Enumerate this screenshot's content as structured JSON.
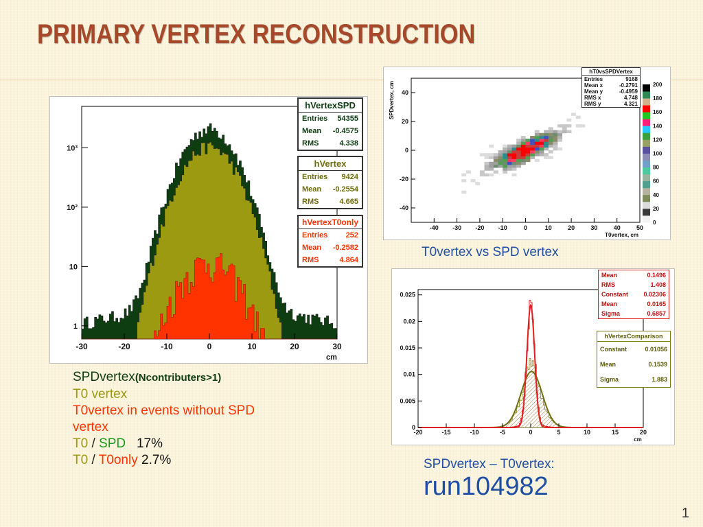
{
  "slide": {
    "title": "PRIMARY VERTEX RECONSTRUCTION",
    "page_number": "1"
  },
  "left_caption": {
    "line1_main": "SPDvertex",
    "line1_sub": "(Ncontributers>1)",
    "line2": "T0 vertex",
    "line3": "T0vertex in events without  SPD",
    "line4": "vertex",
    "ratio1_a": "T0",
    "ratio1_sep": " / ",
    "ratio1_b": "SPD",
    "ratio1_val": "17%",
    "ratio2_a": "T0",
    "ratio2_sep": " / ",
    "ratio2_b": "T0only",
    "ratio2_val": "2.7%"
  },
  "top_right_caption": "T0vertex vs SPD vertex",
  "bottom_right_caption": {
    "line1": "SPDvertex – T0vertex:",
    "line2": "run104982"
  },
  "colors": {
    "title": "#a5492a",
    "spd_fill": "#0f3d12",
    "t0_fill": "#9c9a10",
    "t0only_fill": "#ff3300",
    "caption_blue": "#1f4fa5",
    "comparison_red": "#e02020",
    "comparison_olive": "#7a7a10"
  },
  "chart_data": [
    {
      "type": "histogram",
      "x_tick_labels": [
        "-30",
        "-20",
        "-10",
        "0",
        "10",
        "20",
        "30"
      ],
      "x_ticks": [
        -30,
        -20,
        -10,
        0,
        10,
        20,
        30
      ],
      "xlabel": "cm",
      "y_scale": "log",
      "y_tick_labels": [
        "1",
        "10",
        "10²",
        "10³"
      ],
      "y_ticks": [
        1,
        10,
        100,
        1000
      ],
      "xlim": [
        -30,
        30
      ],
      "ylim": [
        0.6,
        5000
      ],
      "series": [
        {
          "name": "hVertexSPD",
          "stats": {
            "Entries": "54355",
            "Mean": "-0.4575",
            "RMS": "4.338"
          },
          "peak": 2100,
          "sigma": 4.4,
          "color": "#0f3d12"
        },
        {
          "name": "hVertex",
          "stats": {
            "Entries": "9424",
            "Mean": "-0.2554",
            "RMS": "4.665"
          },
          "peak": 1050,
          "sigma": 4.5,
          "color": "#9c9a10"
        },
        {
          "name": "hVertexT0only",
          "stats": {
            "Entries": "252",
            "Mean": "-0.2582",
            "RMS": "4.864"
          },
          "peak": 12,
          "sigma": 5.2,
          "color": "#ff3300"
        }
      ]
    },
    {
      "type": "heatmap",
      "stats_title": "hT0vsSPDVertex",
      "stats": [
        {
          "label": "Entries",
          "value": "9168"
        },
        {
          "label": "Mean x",
          "value": "-0.2791"
        },
        {
          "label": "Mean y",
          "value": "-0.4959"
        },
        {
          "label": "RMS x",
          "value": "4.748"
        },
        {
          "label": "RMS y",
          "value": "4.321"
        }
      ],
      "xlabel": "T0vertex, cm",
      "ylabel": "SPDvertex, cm",
      "xlim": [
        -50,
        50
      ],
      "ylim": [
        -50,
        50
      ],
      "x_tick_labels": [
        "-40",
        "-30",
        "-20",
        "-10",
        "0",
        "10",
        "20",
        "30",
        "40",
        "50"
      ],
      "x_ticks": [
        -40,
        -30,
        -20,
        -10,
        0,
        10,
        20,
        30,
        40,
        50
      ],
      "y_tick_labels": [
        "-40",
        "-20",
        "0",
        "20",
        "40"
      ],
      "y_ticks": [
        -40,
        -20,
        0,
        20,
        40
      ],
      "colorbar_tick_labels": [
        "0",
        "20",
        "40",
        "60",
        "80",
        "100",
        "120",
        "140",
        "160",
        "180",
        "200"
      ],
      "colorbar_ticks": [
        0,
        20,
        40,
        60,
        80,
        100,
        120,
        140,
        160,
        180,
        200
      ],
      "correlation": 0.8
    },
    {
      "type": "histogram",
      "stats_title": "hVertexComparison",
      "fit_red": [
        {
          "label": "Mean",
          "value": "0.1496"
        },
        {
          "label": "RMS",
          "value": "1.408"
        },
        {
          "label": "Constant",
          "value": "0.02306"
        },
        {
          "label": "Mean",
          "value": "0.0165"
        },
        {
          "label": "Sigma",
          "value": "0.6857"
        }
      ],
      "fit_olive": [
        {
          "label": "Constant",
          "value": "0.01056"
        },
        {
          "label": "Mean",
          "value": "0.1539"
        },
        {
          "label": "Sigma",
          "value": "1.883"
        }
      ],
      "xlabel": "cm",
      "xlim": [
        -20,
        20
      ],
      "ylim": [
        0,
        0.026
      ],
      "x_tick_labels": [
        "-20",
        "-15",
        "-10",
        "-5",
        "0",
        "5",
        "10",
        "15",
        "20"
      ],
      "x_ticks": [
        -20,
        -15,
        -10,
        -5,
        0,
        5,
        10,
        15,
        20
      ],
      "y_tick_labels": [
        "0",
        "0.005",
        "0.01",
        "0.015",
        "0.02",
        "0.025"
      ],
      "y_ticks": [
        0,
        0.005,
        0.01,
        0.015,
        0.02,
        0.025
      ],
      "gauss_red": {
        "constant": 0.02306,
        "mean": 0.0165,
        "sigma": 0.6857
      },
      "gauss_olive": {
        "constant": 0.01056,
        "mean": 0.1539,
        "sigma": 1.883
      }
    }
  ]
}
